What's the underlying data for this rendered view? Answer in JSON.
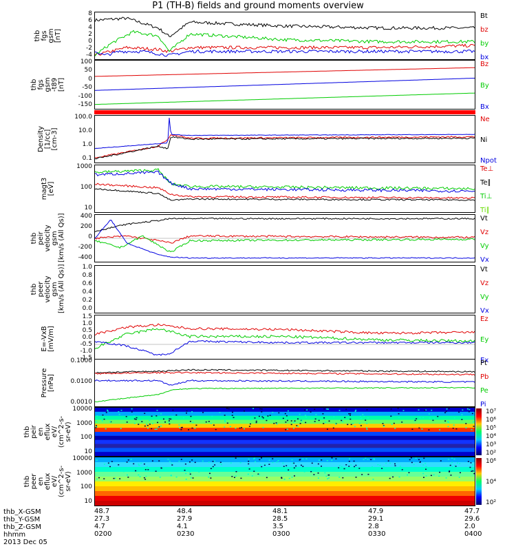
{
  "title": "P1 (TH-B) fields and ground moments overview",
  "panels": [
    {
      "id": "fgs",
      "ylabel": [
        "thb",
        "fgs",
        "gsm",
        "[nT]"
      ],
      "ticks": [
        "8",
        "6",
        "4",
        "2",
        "0",
        "-2",
        "-4"
      ],
      "legend": [
        "Bt",
        "bz",
        "by",
        "bx"
      ]
    },
    {
      "id": "model",
      "ylabel": [
        "thb",
        "fgs",
        "gsm",
        "-t89",
        "[nT]"
      ],
      "ticks": [
        "100",
        "50",
        "0",
        "-50",
        "-100",
        "-150"
      ],
      "legend": [
        "Bz",
        "By",
        "Bx"
      ]
    },
    {
      "id": "density",
      "ylabel": [
        "Density",
        "[1/cc]",
        "[cm-3]"
      ],
      "ticks": [
        "100.0",
        "10.0",
        "1.0",
        "0.1"
      ],
      "legend": [
        "Ne",
        "Ni",
        "Npot"
      ]
    },
    {
      "id": "temp",
      "ylabel": [
        "magt3",
        "[eV]"
      ],
      "ticks": [
        "1000",
        "100",
        "10"
      ],
      "legend": [
        "Te⊥",
        "Te∥",
        "Ti⊥",
        "Ti∥"
      ]
    },
    {
      "id": "vel_ion",
      "ylabel": [
        "thb",
        "peir",
        "velocity",
        "gsm",
        "[km/s (All Qs)]"
      ],
      "ticks": [
        "400",
        "200",
        "0",
        "-200",
        "-400"
      ],
      "legend": [
        "Vt",
        "Vz",
        "Vy",
        "Vx"
      ]
    },
    {
      "id": "vel_elec",
      "ylabel": [
        "thb",
        "peer",
        "velocity",
        "gsm",
        "[km/s (All Qs)]"
      ],
      "ticks": [
        "1.0",
        "0.8",
        "0.6",
        "0.4",
        "0.2",
        "0.0"
      ],
      "legend": [
        "Vt",
        "Vz",
        "Vy",
        "Vx"
      ]
    },
    {
      "id": "efield",
      "ylabel": [
        "E=-VxB",
        "[mV/m]"
      ],
      "ticks": [
        "1.5",
        "1.0",
        "0.5",
        "0.0",
        "-0.5",
        "-1.0",
        "-1.5"
      ],
      "legend": [
        "Ez",
        "Ey",
        "Ex"
      ]
    },
    {
      "id": "pressure",
      "ylabel": [
        "Pressure",
        "[nPa]"
      ],
      "ticks": [
        "0.1000",
        "0.0100",
        "0.0010"
      ],
      "legend": [
        "Pt",
        "Pb",
        "Pe",
        "Pi"
      ]
    },
    {
      "id": "ion_spec",
      "ylabel": [
        "thb",
        "peir",
        "en",
        "eflux",
        "eV/",
        "(cm^2-s-",
        "sr-eV)"
      ],
      "ticks": [
        "10000",
        "1000",
        "100",
        "10"
      ],
      "colorbar": [
        "10⁷",
        "10⁶",
        "10⁵",
        "10⁴",
        "10³",
        "10²"
      ]
    },
    {
      "id": "elec_spec",
      "ylabel": [
        "thb",
        "peer",
        "en",
        "eflux",
        "eV/",
        "(cm^2-s-",
        "sr-eV)"
      ],
      "ticks": [
        "10000",
        "1000",
        "100",
        "10"
      ],
      "colorbar": [
        "10⁶",
        "10⁴",
        "10²"
      ]
    }
  ],
  "footer": {
    "row_labels": [
      "thb_X-GSM",
      "thb_Y-GSM",
      "thb_Z-GSM",
      "hhmm",
      "2013 Dec 05"
    ],
    "columns": [
      [
        "48.7",
        "27.3",
        "4.7",
        "0200"
      ],
      [
        "48.4",
        "27.9",
        "4.1",
        "0230"
      ],
      [
        "48.1",
        "28.5",
        "3.5",
        "0300"
      ],
      [
        "47.9",
        "29.1",
        "2.8",
        "0330"
      ],
      [
        "47.7",
        "29.6",
        "2.0",
        "0400"
      ]
    ]
  },
  "chart_data": {
    "type": "line",
    "title": "P1 (TH-B) fields and ground moments overview",
    "x_tick_labels": [
      "0200",
      "0230",
      "0300",
      "0330",
      "0400"
    ],
    "date": "2013 Dec 05",
    "panels": [
      {
        "name": "fgs",
        "ylim": [
          -4,
          8
        ],
        "series": [
          {
            "name": "Bt",
            "x": [
              0,
              10,
              20,
              23.5,
              30,
              60,
              90,
              120
            ],
            "y": [
              6,
              6.5,
              4,
              1.8,
              5.5,
              4.5,
              4,
              4
            ]
          },
          {
            "name": "bz",
            "x": [
              0,
              10,
              20,
              23.5,
              30,
              60,
              90,
              120
            ],
            "y": [
              -3,
              -1,
              -1.5,
              -2,
              -1,
              -1,
              -1,
              -0.5
            ]
          },
          {
            "name": "by",
            "x": [
              0,
              5,
              12,
              20,
              23.5,
              30,
              60,
              90,
              120
            ],
            "y": [
              -3,
              0,
              3,
              2,
              -2,
              2.5,
              1,
              0.5,
              0.5
            ]
          },
          {
            "name": "bx",
            "x": [
              0,
              3,
              8,
              15,
              23.5,
              30,
              60,
              90,
              120
            ],
            "y": [
              -2,
              -3,
              -2,
              -2,
              -3,
              -2,
              -2,
              -2,
              -2
            ]
          }
        ]
      },
      {
        "name": "model",
        "ylim": [
          -175,
          100
        ],
        "series": [
          {
            "name": "Bz",
            "x": [
              0,
              120
            ],
            "y": [
              10,
              60
            ]
          },
          {
            "name": "By",
            "x": [
              0,
              120
            ],
            "y": [
              -150,
              -85
            ]
          },
          {
            "name": "Bx",
            "x": [
              0,
              120
            ],
            "y": [
              -70,
              0
            ]
          }
        ]
      }
    ]
  },
  "colors": {
    "black": "#000000",
    "red": "#e00000",
    "green": "#00cc00",
    "blue": "#0000e0",
    "ti_par": "#66dd00"
  }
}
